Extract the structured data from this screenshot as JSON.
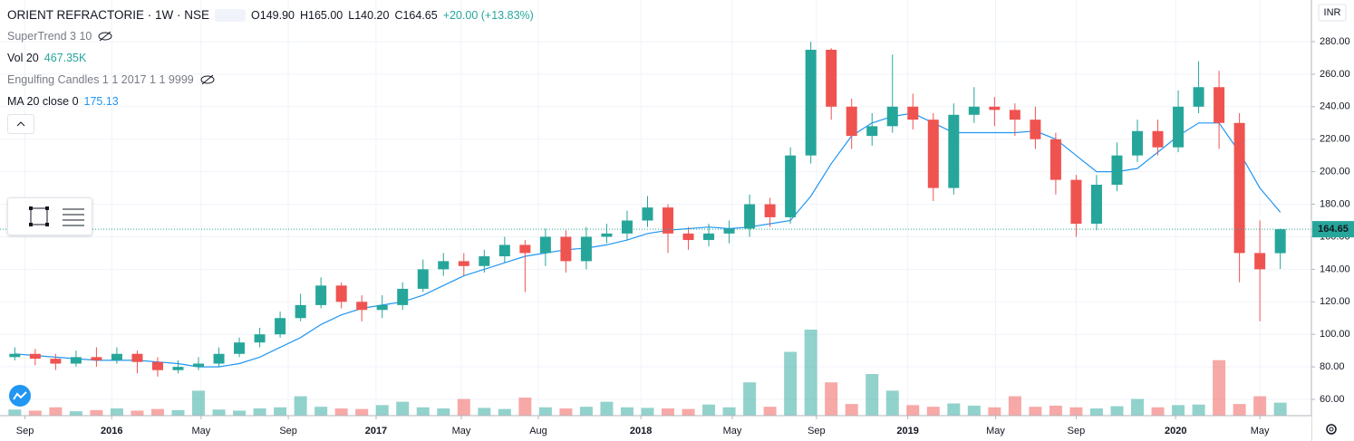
{
  "header": {
    "symbol": "ORIENT REFRACTORIE · 1W · NSE",
    "open": "O149.90",
    "high": "H165.00",
    "low": "L140.20",
    "close": "C164.65",
    "change": "+20.00 (+13.83%)"
  },
  "indicators": [
    {
      "name": "SuperTrend 3 10"
    },
    {
      "name": "Vol 20",
      "value": "467.35K"
    },
    {
      "name": "Engulfing Candles 1 1 2017 1 1 9999"
    },
    {
      "name": "MA 20 close 0",
      "value": "175.13"
    }
  ],
  "currency": "INR",
  "last_price_label": "164.65",
  "chart_data": {
    "type": "candlestick",
    "x": [
      2,
      6,
      10,
      14,
      18,
      22,
      26,
      30,
      34,
      38,
      42,
      46,
      50,
      54,
      58,
      62,
      66,
      70,
      74,
      78,
      82,
      86,
      90,
      94,
      98,
      102,
      106,
      110,
      114,
      118,
      122,
      126,
      130,
      134,
      138,
      142,
      146,
      150,
      154,
      158,
      162,
      166,
      170,
      174,
      178,
      182,
      186,
      190,
      194,
      198,
      202,
      206,
      210,
      214,
      218,
      222,
      226,
      230,
      234,
      238,
      242,
      246,
      250
    ],
    "open": [
      86,
      88,
      85,
      82,
      86,
      84,
      88,
      83,
      78,
      80,
      82,
      88,
      95,
      100,
      110,
      118,
      130,
      120,
      115,
      118,
      128,
      140,
      145,
      142,
      148,
      155,
      150,
      160,
      145,
      160,
      162,
      170,
      178,
      162,
      158,
      162,
      165,
      180,
      172,
      210,
      275,
      240,
      222,
      228,
      240,
      232,
      190,
      235,
      240,
      238,
      232,
      220,
      195,
      168,
      192,
      210,
      225,
      215,
      240,
      252,
      230,
      150,
      149.9
    ],
    "high": [
      92,
      91,
      88,
      90,
      92,
      92,
      90,
      86,
      84,
      86,
      92,
      98,
      104,
      114,
      125,
      135,
      132,
      124,
      124,
      132,
      146,
      150,
      150,
      152,
      160,
      158,
      165,
      164,
      166,
      168,
      176,
      185,
      180,
      166,
      168,
      170,
      186,
      184,
      215,
      280,
      276,
      245,
      236,
      272,
      248,
      236,
      242,
      252,
      246,
      242,
      240,
      224,
      198,
      198,
      218,
      232,
      232,
      250,
      268,
      262,
      236,
      170,
      165
    ],
    "low": [
      84,
      81,
      78,
      80,
      80,
      82,
      76,
      74,
      76,
      78,
      80,
      86,
      92,
      98,
      108,
      116,
      116,
      108,
      110,
      115,
      126,
      136,
      136,
      138,
      144,
      126,
      142,
      138,
      140,
      156,
      158,
      166,
      150,
      152,
      154,
      156,
      160,
      166,
      168,
      205,
      232,
      214,
      216,
      224,
      226,
      182,
      186,
      230,
      228,
      222,
      214,
      186,
      160,
      164,
      188,
      206,
      210,
      212,
      236,
      214,
      132,
      108,
      140.2
    ],
    "close": [
      88,
      85,
      82,
      86,
      84,
      88,
      83,
      78,
      80,
      82,
      88,
      95,
      100,
      110,
      118,
      130,
      120,
      115,
      118,
      128,
      140,
      145,
      142,
      148,
      155,
      150,
      160,
      145,
      160,
      162,
      170,
      178,
      162,
      158,
      162,
      165,
      180,
      172,
      210,
      275,
      240,
      222,
      228,
      240,
      232,
      190,
      235,
      240,
      238,
      232,
      220,
      195,
      168,
      192,
      210,
      225,
      215,
      240,
      252,
      230,
      150,
      140,
      164.65
    ],
    "volume": [
      220,
      180,
      300,
      160,
      200,
      260,
      180,
      240,
      200,
      900,
      220,
      180,
      260,
      300,
      700,
      320,
      260,
      240,
      380,
      500,
      300,
      260,
      600,
      280,
      240,
      650,
      300,
      260,
      320,
      500,
      300,
      280,
      260,
      240,
      400,
      300,
      1200,
      320,
      2300,
      3100,
      1200,
      420,
      1500,
      900,
      380,
      320,
      440,
      360,
      300,
      700,
      320,
      360,
      300,
      260,
      340,
      600,
      300,
      380,
      400,
      2000,
      420,
      700,
      467.35
    ],
    "ma": [
      88,
      87,
      86,
      85,
      84,
      84,
      84,
      83,
      82,
      80,
      80,
      82,
      86,
      92,
      98,
      106,
      112,
      116,
      118,
      120,
      124,
      130,
      136,
      140,
      144,
      148,
      150,
      152,
      153,
      155,
      158,
      162,
      164,
      165,
      166,
      165,
      166,
      168,
      170,
      185,
      205,
      222,
      230,
      234,
      236,
      230,
      224,
      224,
      224,
      224,
      225,
      220,
      210,
      200,
      200,
      202,
      212,
      222,
      230,
      230,
      212,
      190,
      175.13
    ],
    "up_color": "#26a69a",
    "down_color": "#ef5350",
    "ma_color": "#2196f3",
    "xlim": [
      -0.9,
      256.1
    ],
    "ylim": [
      50,
      305.6
    ],
    "xticks": [
      {
        "value": 4,
        "label": "Sep"
      },
      {
        "value": 21,
        "label": "2016"
      },
      {
        "value": 38.5,
        "label": "May"
      },
      {
        "value": 55.6,
        "label": "Sep"
      },
      {
        "value": 72.8,
        "label": "2017"
      },
      {
        "value": 89.5,
        "label": "May"
      },
      {
        "value": 104.6,
        "label": "Aug"
      },
      {
        "value": 124.7,
        "label": "2018"
      },
      {
        "value": 142.6,
        "label": "May"
      },
      {
        "value": 159.1,
        "label": "Sep"
      },
      {
        "value": 177,
        "label": "2019"
      },
      {
        "value": 194.2,
        "label": "May"
      },
      {
        "value": 210,
        "label": "Sep"
      },
      {
        "value": 229.5,
        "label": "2020"
      },
      {
        "value": 246,
        "label": "May"
      }
    ],
    "yticks": [
      {
        "value": 60,
        "label": "60.00"
      },
      {
        "value": 80,
        "label": "80.00"
      },
      {
        "value": 100,
        "label": "100.00"
      },
      {
        "value": 120,
        "label": "120.00"
      },
      {
        "value": 140,
        "label": "140.00"
      },
      {
        "value": 160,
        "label": "160.00"
      },
      {
        "value": 180,
        "label": "180.00"
      },
      {
        "value": 200,
        "label": "200.00"
      },
      {
        "value": 220,
        "label": "220.00"
      },
      {
        "value": 240,
        "label": "240.00"
      },
      {
        "value": 260,
        "label": "260.00"
      },
      {
        "value": 280,
        "label": "280.00"
      }
    ],
    "grid": true
  }
}
